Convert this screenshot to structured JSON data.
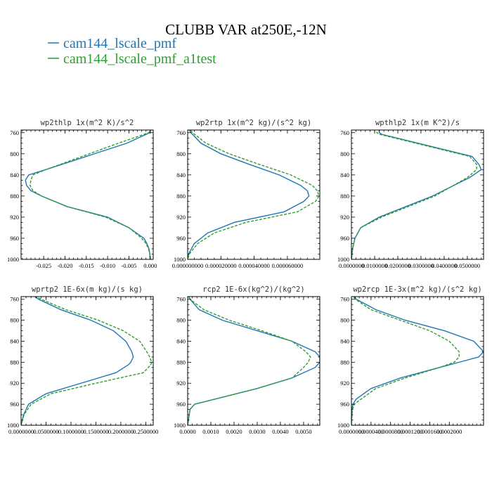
{
  "title": "CLUBB VAR at250E,-12N",
  "colors": {
    "series_1": "#1f77b4",
    "series_2": "#2ca02c"
  },
  "legend": [
    {
      "name": "cam144_lscale_pmf",
      "color": "#1f77b4",
      "dash": "solid"
    },
    {
      "name": "cam144_lscale_pmf_a1test",
      "color": "#2ca02c",
      "dash": "dashed"
    }
  ],
  "chart_data": [
    {
      "type": "line",
      "title": "wp2thlp  1x(m^2 K)/s^2",
      "y": [
        750,
        760,
        780,
        830,
        840,
        850,
        860,
        870,
        880,
        900,
        920,
        940,
        960,
        970,
        980,
        990,
        1000
      ],
      "ylim": [
        1000,
        755
      ],
      "yticks": [
        760,
        800,
        840,
        880,
        920,
        960,
        1000
      ],
      "xlim": [
        -0.0303,
        0.0007
      ],
      "xticks": [
        -0.025,
        -0.02,
        -0.015,
        -0.01,
        -0.005,
        0.0
      ],
      "xtick_labels": [
        "-0.025",
        "-0.020",
        "-0.015",
        "-0.010",
        "-0.005",
        "0.000"
      ],
      "series": [
        {
          "name": "cam144_lscale_pmf",
          "values": [
            0.0002,
            -0.0001,
            -0.0055,
            -0.0245,
            -0.0285,
            -0.0293,
            -0.029,
            -0.028,
            -0.0255,
            -0.0195,
            -0.01,
            -0.005,
            -0.0015,
            -0.0008,
            -0.0003,
            -0.0001,
            0.0
          ]
        },
        {
          "name": "cam144_lscale_pmf_a1test",
          "values": [
            0.0001,
            -0.0003,
            -0.0075,
            -0.0245,
            -0.0275,
            -0.028,
            -0.0282,
            -0.0275,
            -0.0255,
            -0.0195,
            -0.0105,
            -0.005,
            -0.002,
            -0.001,
            -0.0004,
            -0.0001,
            0.0
          ]
        }
      ]
    },
    {
      "type": "line",
      "title": "wp2rtp  1x(m^2 kg)/(s^2 kg)",
      "y": [
        750,
        760,
        780,
        800,
        820,
        840,
        860,
        870,
        880,
        890,
        910,
        930,
        950,
        970,
        990,
        1000
      ],
      "ylim": [
        1000,
        755
      ],
      "yticks": [
        760,
        800,
        840,
        880,
        920,
        960,
        1000
      ],
      "xlim": [
        0.0,
        7.95e-05
      ],
      "xticks": [
        0.0,
        2e-05,
        4e-05,
        6e-05
      ],
      "xtick_labels": [
        "0.000000000",
        "0.000020000",
        "0.000040000",
        "0.000060000"
      ],
      "series": [
        {
          "name": "cam144_lscale_pmf",
          "values": [
            0.0,
            2e-06,
            8e-06,
            2e-05,
            3.7e-05,
            5.5e-05,
            6.8e-05,
            7.2e-05,
            7.3e-05,
            7e-05,
            5.8e-05,
            2.8e-05,
            1.2e-05,
            4e-06,
            5e-07,
            0.0
          ]
        },
        {
          "name": "cam144_lscale_pmf_a1test",
          "values": [
            0.0,
            3e-06,
            1.1e-05,
            2.5e-05,
            4.3e-05,
            6.2e-05,
            7.5e-05,
            7.8e-05,
            7.9e-05,
            7.7e-05,
            6.6e-05,
            3.5e-05,
            1.6e-05,
            6e-06,
            1e-06,
            0.0
          ]
        }
      ]
    },
    {
      "type": "line",
      "title": "wpthlp2  1x(m K^2)/s",
      "y": [
        750,
        760,
        763,
        805,
        820,
        830,
        845,
        880,
        920,
        940,
        960,
        980,
        1000
      ],
      "ylim": [
        1000,
        755
      ],
      "yticks": [
        760,
        800,
        840,
        880,
        920,
        960,
        1000
      ],
      "xlim": [
        0.0,
        0.057
      ],
      "xticks": [
        0.0,
        0.01,
        0.02,
        0.03,
        0.04,
        0.05
      ],
      "xtick_labels": [
        "0.0000000",
        "0.0100000",
        "0.0200000",
        "0.0300000",
        "0.0400000",
        "0.0500000"
      ],
      "series": [
        {
          "name": "cam144_lscale_pmf",
          "values": [
            0.012,
            0.012,
            0.013,
            0.052,
            0.055,
            0.056,
            0.051,
            0.035,
            0.012,
            0.004,
            0.0015,
            0.0005,
            0.0
          ]
        },
        {
          "name": "cam144_lscale_pmf_a1test",
          "values": [
            0.011,
            0.011,
            0.012,
            0.051,
            0.054,
            0.054,
            0.05,
            0.036,
            0.013,
            0.004,
            0.0015,
            0.0005,
            0.0
          ]
        }
      ]
    },
    {
      "type": "line",
      "title": "wprtp2  1E-6x(m kg)/(s kg)",
      "y": [
        750,
        760,
        780,
        800,
        820,
        840,
        860,
        870,
        880,
        885,
        900,
        920,
        940,
        960,
        980,
        1000
      ],
      "ylim": [
        1000,
        755
      ],
      "yticks": [
        760,
        800,
        840,
        880,
        920,
        960,
        1000
      ],
      "xlim": [
        0.0,
        0.265
      ],
      "xticks": [
        0.0,
        0.05,
        0.1,
        0.15,
        0.2,
        0.25
      ],
      "xtick_labels": [
        "0.0000000",
        "0.0500000",
        "0.1000000",
        "0.1500000",
        "0.2000000",
        "0.2500000"
      ],
      "series": [
        {
          "name": "cam144_lscale_pmf",
          "values": [
            0.02,
            0.035,
            0.08,
            0.14,
            0.185,
            0.21,
            0.222,
            0.225,
            0.22,
            0.215,
            0.19,
            0.12,
            0.05,
            0.015,
            0.005,
            0.0
          ]
        },
        {
          "name": "cam144_lscale_pmf_a1test",
          "values": [
            0.02,
            0.04,
            0.09,
            0.155,
            0.205,
            0.238,
            0.252,
            0.258,
            0.262,
            0.26,
            0.245,
            0.15,
            0.06,
            0.02,
            0.006,
            0.0
          ]
        }
      ]
    },
    {
      "type": "line",
      "title": "rcp2  1E-6x(kg^2)/(kg^2)",
      "y": [
        750,
        760,
        780,
        800,
        820,
        840,
        860,
        870,
        880,
        890,
        910,
        930,
        950,
        960,
        970,
        1000
      ],
      "ylim": [
        1000,
        755
      ],
      "yticks": [
        760,
        800,
        840,
        880,
        920,
        960,
        1000
      ],
      "xlim": [
        0.0,
        0.0057
      ],
      "xticks": [
        0.0,
        0.001,
        0.002,
        0.003,
        0.004,
        0.005
      ],
      "xtick_labels": [
        "0.0000",
        "0.0010",
        "0.0020",
        "0.0030",
        "0.0040",
        "0.0050"
      ],
      "series": [
        {
          "name": "cam144_lscale_pmf",
          "values": [
            0.0,
            0.0001,
            0.0005,
            0.0015,
            0.003,
            0.0045,
            0.0055,
            0.0057,
            0.0057,
            0.0055,
            0.0045,
            0.003,
            0.0012,
            0.0003,
            0.0001,
            0.0
          ]
        },
        {
          "name": "cam144_lscale_pmf_a1test",
          "values": [
            0.0,
            0.0001,
            0.0007,
            0.0018,
            0.0032,
            0.0045,
            0.0051,
            0.0053,
            0.0052,
            0.005,
            0.0045,
            0.003,
            0.0012,
            0.0003,
            0.0001,
            0.0
          ]
        }
      ]
    },
    {
      "type": "line",
      "title": "wp2rcp  1E-3x(m^2 kg)/(s^2 kg)",
      "y": [
        750,
        760,
        780,
        800,
        820,
        840,
        860,
        870,
        880,
        890,
        910,
        930,
        950,
        960,
        970,
        1000
      ],
      "ylim": [
        1000,
        755
      ],
      "yticks": [
        760,
        800,
        840,
        880,
        920,
        960,
        1000
      ],
      "xlim": [
        0.0,
        0.00027
      ],
      "xticks": [
        0.0,
        4e-05,
        8e-05,
        0.00012,
        0.00016,
        0.0002
      ],
      "xtick_labels": [
        "0.0000000",
        "0.0000400",
        "0.0000800",
        "0.0001200",
        "0.0001600",
        "0.0002000"
      ],
      "series": [
        {
          "name": "cam144_lscale_pmf",
          "values": [
            0.0,
            1e-05,
            5e-05,
            0.00011,
            0.00019,
            0.00025,
            0.00027,
            0.00026,
            0.00022,
            0.00018,
            0.0001,
            4e-05,
            1e-05,
            3e-06,
            1e-06,
            0.0
          ]
        },
        {
          "name": "cam144_lscale_pmf_a1test",
          "values": [
            0.0,
            8e-06,
            4e-05,
            0.0001,
            0.00016,
            0.0002,
            0.00022,
            0.00022,
            0.00021,
            0.00018,
            0.00011,
            5e-05,
            2e-05,
            6e-06,
            2e-06,
            0.0
          ]
        }
      ]
    }
  ]
}
